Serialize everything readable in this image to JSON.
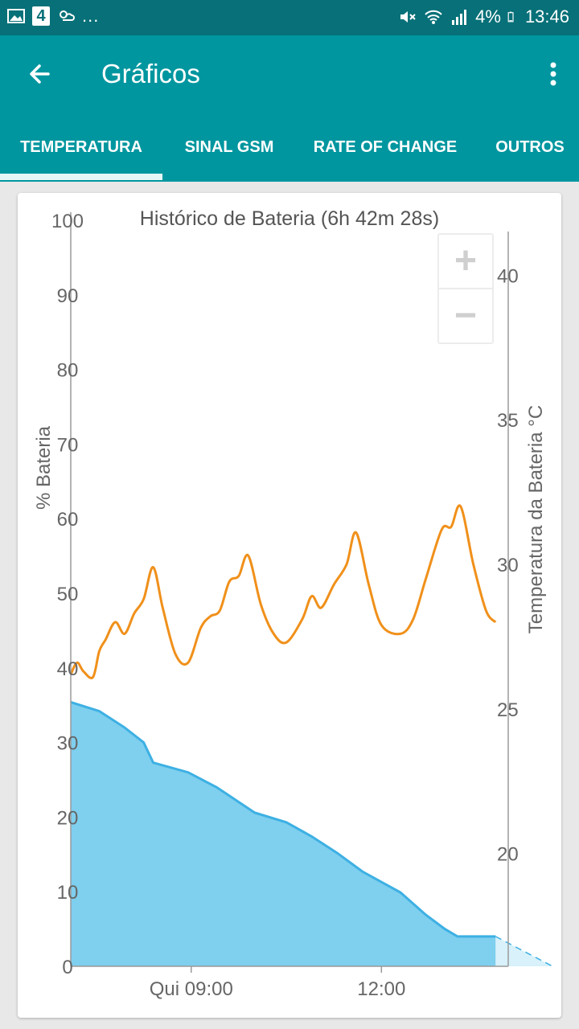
{
  "status_bar": {
    "notification_badge": "4",
    "more_indicator": "...",
    "battery_percent": "4%",
    "time": "13:46"
  },
  "app_bar": {
    "title": "Gráficos"
  },
  "tabs": [
    {
      "label": "TEMPERATURA",
      "selected": true
    },
    {
      "label": "SINAL GSM",
      "selected": false
    },
    {
      "label": "RATE OF CHANGE",
      "selected": false
    },
    {
      "label": "OUTROS",
      "selected": false
    }
  ],
  "zoom_controls": {
    "zoom_in": "+",
    "zoom_out": "−"
  },
  "colors": {
    "primary": "#00969f",
    "status_bar": "#077078",
    "battery_fill": "#7fcfee",
    "battery_line": "#3db0e3",
    "temperature_line": "#f0901a"
  },
  "chart_data": {
    "type": "area",
    "title": "Histórico de Bateria (6h 42m 28s)",
    "ylabel": "% Bateria",
    "y2label": "Temperatura da Bateria °C",
    "ylim": [
      0,
      100
    ],
    "y2lim": [
      16.1,
      41.9
    ],
    "xlim_hours": [
      7.1,
      14.0
    ],
    "x_ticks": [
      "Qui 09:00",
      "12:00"
    ],
    "x_tick_hours": [
      9.0,
      12.0
    ],
    "y_ticks": [
      "100",
      "90",
      "80",
      "70",
      "60",
      "50",
      "40",
      "30",
      "20",
      "10",
      "0"
    ],
    "y_tick_values": [
      100,
      90,
      80,
      70,
      60,
      50,
      40,
      30,
      20,
      10,
      0
    ],
    "y2_ticks": [
      "40",
      "35",
      "30",
      "25",
      "20"
    ],
    "y2_tick_values": [
      40,
      35,
      30,
      25,
      20
    ],
    "series": [
      {
        "name": "% Bateria",
        "axis": "left",
        "x_hours": [
          7.1,
          7.55,
          7.95,
          8.25,
          8.4,
          8.95,
          9.4,
          10.0,
          10.5,
          10.9,
          11.3,
          11.7,
          12.3,
          12.7,
          13.0,
          13.2,
          13.8
        ],
        "values": [
          35.4,
          34.2,
          32.0,
          30.0,
          27.3,
          26.0,
          24.0,
          20.6,
          19.3,
          17.4,
          15.2,
          12.7,
          9.9,
          6.9,
          5.0,
          4.0,
          4.0
        ]
      },
      {
        "name": "% Bateria (projeção)",
        "axis": "left",
        "x_hours": [
          13.8,
          14.7
        ],
        "values": [
          4.0,
          0.0
        ]
      },
      {
        "name": "Temperatura da Bateria °C",
        "axis": "right",
        "x_hours": [
          7.1,
          7.2,
          7.3,
          7.45,
          7.55,
          7.65,
          7.8,
          7.95,
          8.1,
          8.25,
          8.4,
          8.55,
          8.75,
          8.95,
          9.15,
          9.3,
          9.45,
          9.6,
          9.75,
          9.9,
          10.1,
          10.3,
          10.5,
          10.75,
          10.9,
          11.05,
          11.25,
          11.45,
          11.6,
          11.8,
          12.0,
          12.3,
          12.5,
          12.7,
          12.95,
          13.1,
          13.25,
          13.45,
          13.65,
          13.8
        ],
        "values": [
          26.2,
          26.6,
          26.3,
          26.1,
          27.0,
          27.4,
          28.0,
          27.6,
          28.3,
          28.8,
          29.9,
          28.5,
          26.9,
          26.6,
          27.8,
          28.2,
          28.4,
          29.4,
          29.6,
          30.3,
          28.6,
          27.6,
          27.3,
          28.1,
          28.9,
          28.5,
          29.3,
          30.0,
          31.1,
          29.3,
          27.9,
          27.6,
          28.1,
          29.5,
          31.2,
          31.3,
          32.0,
          30.0,
          28.4,
          28.0
        ]
      }
    ],
    "legend": "none",
    "grid": false
  }
}
